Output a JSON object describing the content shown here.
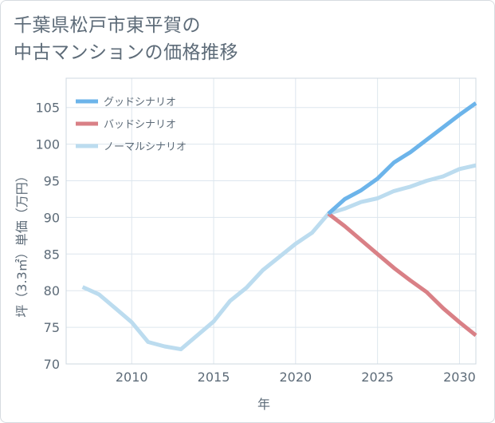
{
  "title": {
    "line1": "千葉県松戸市東平賀の",
    "line2": "中古マンションの価格推移"
  },
  "chart_data": {
    "type": "line",
    "title": "千葉県松戸市東平賀の中古マンションの価格推移",
    "xlabel": "年",
    "ylabel": "坪（3.3㎡）単価（万円）",
    "xlim": [
      2006,
      2031
    ],
    "ylim": [
      70,
      109
    ],
    "xticks": [
      2010,
      2015,
      2020,
      2025,
      2030
    ],
    "yticks": [
      70,
      75,
      80,
      85,
      90,
      95,
      100,
      105
    ],
    "grid": true,
    "legend_position": "top-left",
    "series": [
      {
        "name": "グッドシナリオ",
        "color": "#6cb4ea",
        "x": [
          2022,
          2023,
          2024,
          2025,
          2026,
          2027,
          2028,
          2029,
          2030,
          2031
        ],
        "y": [
          90.5,
          92.5,
          93.7,
          95.3,
          97.5,
          98.9,
          100.6,
          102.3,
          104.0,
          105.6
        ]
      },
      {
        "name": "バッドシナリオ",
        "color": "#d98086",
        "x": [
          2022,
          2023,
          2024,
          2025,
          2026,
          2027,
          2028,
          2029,
          2030,
          2031
        ],
        "y": [
          90.5,
          88.8,
          86.9,
          85.0,
          83.1,
          81.4,
          79.8,
          77.6,
          75.7,
          73.9
        ]
      },
      {
        "name": "ノーマルシナリオ",
        "color": "#bcdcef",
        "x": [
          2007,
          2008,
          2009,
          2010,
          2011,
          2012,
          2013,
          2014,
          2015,
          2016,
          2017,
          2018,
          2019,
          2020,
          2021,
          2022,
          2023,
          2024,
          2025,
          2026,
          2027,
          2028,
          2029,
          2030,
          2031
        ],
        "y": [
          80.5,
          79.5,
          77.6,
          75.7,
          73.0,
          72.4,
          72.0,
          73.9,
          75.8,
          78.6,
          80.4,
          82.8,
          84.6,
          86.4,
          87.9,
          90.5,
          91.2,
          92.1,
          92.6,
          93.6,
          94.2,
          95.0,
          95.6,
          96.6,
          97.1
        ]
      }
    ]
  }
}
